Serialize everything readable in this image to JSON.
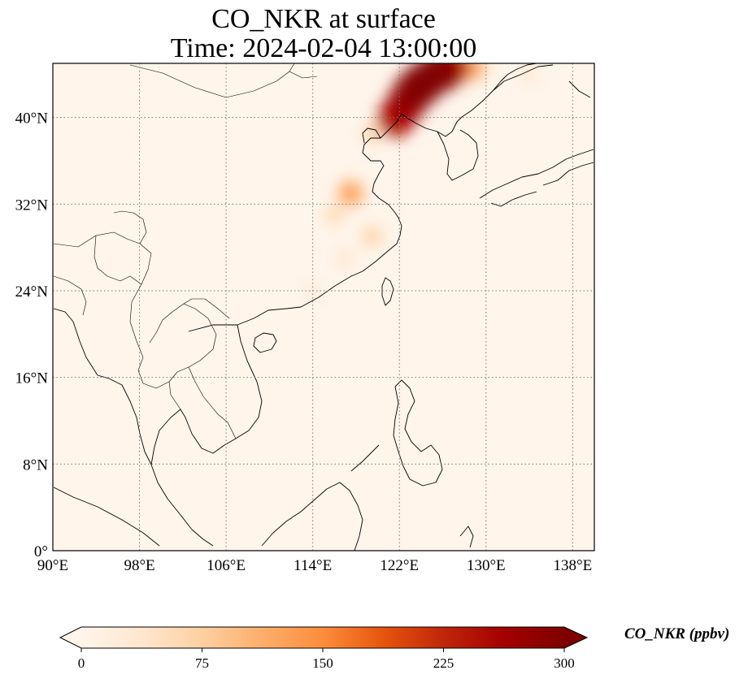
{
  "title": {
    "line1": "CO_NKR at surface",
    "line2": "Time: 2024-02-04 13:00:00"
  },
  "map": {
    "projection": "PlateCarree",
    "lon_range": [
      90,
      140
    ],
    "lat_range": [
      0,
      45
    ],
    "lon_ticks": [
      90,
      98,
      106,
      114,
      122,
      130,
      138
    ],
    "lon_tick_labels": [
      "90°E",
      "98°E",
      "106°E",
      "114°E",
      "122°E",
      "130°E",
      "138°E"
    ],
    "lat_ticks": [
      0,
      8,
      16,
      24,
      32,
      40
    ],
    "lat_tick_labels": [
      "0°",
      "8°N",
      "16°N",
      "24°N",
      "32°N",
      "40°N"
    ],
    "gridlines": true,
    "gridline_style": "dotted",
    "background_color": "#fff5eb"
  },
  "colorbar": {
    "label": "CO_NKR (ppbv)",
    "colormap": "OrRd",
    "colors": [
      "#fff5eb",
      "#fee6ce",
      "#fdd0a2",
      "#fdae6b",
      "#fd8d3c",
      "#e6550d",
      "#c0260a",
      "#a30000",
      "#7f0000"
    ],
    "range": [
      0,
      300
    ],
    "ticks": [
      0,
      75,
      150,
      225,
      300
    ],
    "tick_labels": [
      "0",
      "75",
      "150",
      "225",
      "300"
    ],
    "extend": "both"
  },
  "plumes": [
    {
      "lon": 123.2,
      "lat": 42.2,
      "value": 290
    },
    {
      "lon": 124.2,
      "lat": 43.2,
      "value": 300
    },
    {
      "lon": 125.8,
      "lat": 44.3,
      "value": 300
    },
    {
      "lon": 122.3,
      "lat": 40.8,
      "value": 260
    },
    {
      "lon": 121.6,
      "lat": 39.8,
      "value": 240
    },
    {
      "lon": 127.0,
      "lat": 44.6,
      "value": 220
    },
    {
      "lon": 128.8,
      "lat": 44.6,
      "value": 120
    },
    {
      "lon": 119.5,
      "lat": 38.5,
      "value": 70
    },
    {
      "lon": 117.5,
      "lat": 33.0,
      "value": 130
    },
    {
      "lon": 116.0,
      "lat": 31.0,
      "value": 65
    },
    {
      "lon": 119.5,
      "lat": 29.0,
      "value": 75
    },
    {
      "lon": 117.0,
      "lat": 27.0,
      "value": 45
    },
    {
      "lon": 114.0,
      "lat": 24.0,
      "value": 35
    },
    {
      "lon": 134.0,
      "lat": 44.0,
      "value": 40
    }
  ]
}
